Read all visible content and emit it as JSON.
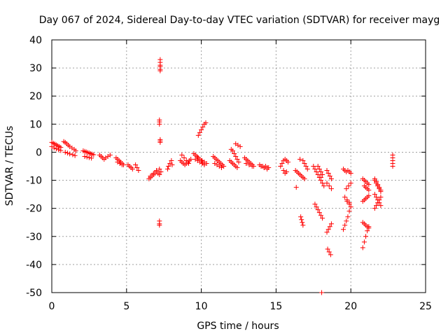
{
  "chart_data": {
    "type": "scatter",
    "title": "Day 067 of 2024, Sidereal Day-to-day VTEC variation (SDTVAR) for receiver mayg",
    "xlabel": "GPS time / hours",
    "ylabel": "SDTVAR / TECUs",
    "xlim": [
      0,
      25
    ],
    "ylim": [
      -50,
      40
    ],
    "xticks": [
      "0",
      "5",
      "10",
      "15",
      "20",
      "25"
    ],
    "yticks": [
      "40",
      "30",
      "20",
      "10",
      "0",
      "-10",
      "-20",
      "-30",
      "-40",
      "-50"
    ],
    "grid": true,
    "marker": "+",
    "color": "#ff0000",
    "series": [
      {
        "name": "SDTVAR",
        "x": [
          0.0,
          0.1,
          0.2,
          0.3,
          0.4,
          0.5,
          0.6,
          0.0,
          0.15,
          0.3,
          0.45,
          0.6,
          0.8,
          0.9,
          1.0,
          1.1,
          1.2,
          1.35,
          1.5,
          1.6,
          0.9,
          1.05,
          1.2,
          1.4,
          1.55,
          2.1,
          2.2,
          2.3,
          2.4,
          2.5,
          2.6,
          2.7,
          2.8,
          2.2,
          2.35,
          2.5,
          2.65,
          3.2,
          3.3,
          3.4,
          3.5,
          3.6,
          3.75,
          3.9,
          4.3,
          4.4,
          4.5,
          4.6,
          4.7,
          4.8,
          4.4,
          4.55,
          4.7,
          5.1,
          5.2,
          5.3,
          5.4,
          5.6,
          5.7,
          5.8,
          6.5,
          6.6,
          6.7,
          6.8,
          6.9,
          7.0,
          7.1,
          7.2,
          7.3,
          6.6,
          6.8,
          7.0,
          7.2,
          7.25,
          7.25,
          7.25,
          7.25,
          7.25,
          7.25,
          7.2,
          7.2,
          7.2,
          7.25,
          7.25,
          7.25,
          7.2,
          7.2,
          7.2,
          7.75,
          7.8,
          7.9,
          8.0,
          8.05,
          8.6,
          8.7,
          8.8,
          8.9,
          9.0,
          9.1,
          9.2,
          9.3,
          8.7,
          8.85,
          9.0,
          9.15,
          9.5,
          9.6,
          9.7,
          9.8,
          9.9,
          10.0,
          10.1,
          10.2,
          9.6,
          9.75,
          9.9,
          10.05,
          10.2,
          9.8,
          9.9,
          10.0,
          10.1,
          10.2,
          10.3,
          9.75,
          9.9,
          10.05,
          10.2,
          10.35,
          10.8,
          10.9,
          11.0,
          11.1,
          11.2,
          11.3,
          11.4,
          11.5,
          10.9,
          11.05,
          11.2,
          11.35,
          12.0,
          12.1,
          12.2,
          12.3,
          12.4,
          12.5,
          11.9,
          12.0,
          12.1,
          12.2,
          12.3,
          12.4,
          12.3,
          12.45,
          12.6,
          12.9,
          13.0,
          13.1,
          13.2,
          13.3,
          13.4,
          13.5,
          13.0,
          13.2,
          13.4,
          13.9,
          14.0,
          14.1,
          14.2,
          14.3,
          14.4,
          14.5,
          14.0,
          14.2,
          14.4,
          15.3,
          15.4,
          15.5,
          15.6,
          15.7,
          15.8,
          15.5,
          15.6,
          15.7,
          16.3,
          16.4,
          16.5,
          16.6,
          16.7,
          16.8,
          16.9,
          16.35,
          16.6,
          16.65,
          16.7,
          16.75,
          16.8,
          16.8,
          16.9,
          17.0,
          17.1,
          17.5,
          17.6,
          17.7,
          17.8,
          17.9,
          18.0,
          18.1,
          18.2,
          17.6,
          17.7,
          17.8,
          17.9,
          18.0,
          18.1,
          17.8,
          17.9,
          18.0,
          18.1,
          18.0,
          18.4,
          18.5,
          18.6,
          18.7,
          18.45,
          18.55,
          18.65,
          18.4,
          18.5,
          18.6,
          18.7,
          18.4,
          18.55,
          18.7,
          19.5,
          19.6,
          19.7,
          19.8,
          19.9,
          20.0,
          19.5,
          19.6,
          19.7,
          19.8,
          19.9,
          20.0,
          19.7,
          19.85,
          20.0,
          19.75,
          19.9,
          19.6,
          19.75,
          19.9,
          20.8,
          20.9,
          21.0,
          21.1,
          21.2,
          20.9,
          21.0,
          21.1,
          21.2,
          20.8,
          20.9,
          21.0,
          21.1,
          21.2,
          20.8,
          20.9,
          21.0,
          21.1,
          21.2,
          20.8,
          20.9,
          21.0,
          21.1,
          21.2,
          21.6,
          21.7,
          21.8,
          21.9,
          22.0,
          21.6,
          21.7,
          21.8,
          21.9,
          22.0,
          21.6,
          21.7,
          21.8,
          21.9,
          22.0,
          21.6,
          21.7,
          21.8,
          21.9,
          22.0,
          22.8,
          22.8,
          22.8,
          22.8,
          22.8,
          18.05
        ],
        "y": [
          3.5,
          3.2,
          2.9,
          2.6,
          2.3,
          2.0,
          1.7,
          2.0,
          1.5,
          1.2,
          0.9,
          0.6,
          3.8,
          3.5,
          3.0,
          2.5,
          2.0,
          1.5,
          1.0,
          0.5,
          0.0,
          -0.3,
          -0.6,
          -0.9,
          -1.2,
          0.5,
          0.3,
          0.1,
          -0.1,
          -0.3,
          -0.5,
          -0.7,
          -0.9,
          -1.5,
          -1.7,
          -1.9,
          -2.1,
          -1.0,
          -1.5,
          -2.0,
          -2.5,
          -2.0,
          -1.5,
          -1.0,
          -2.0,
          -2.5,
          -3.0,
          -3.5,
          -4.0,
          -4.5,
          -3.5,
          -4.0,
          -4.5,
          -4.5,
          -5.0,
          -5.5,
          -6.0,
          -4.5,
          -5.5,
          -6.5,
          -9.5,
          -9.0,
          -8.5,
          -8.0,
          -7.5,
          -7.0,
          -7.5,
          -8.0,
          -7.0,
          -8.5,
          -7.5,
          -6.5,
          -6.0,
          33.0,
          32.0,
          31.0,
          30.5,
          29.5,
          29.0,
          11.5,
          10.8,
          10.0,
          4.5,
          4.0,
          3.5,
          -24.5,
          -25.5,
          -26.0,
          -6.0,
          -5.0,
          -4.0,
          -3.0,
          -4.5,
          -3.0,
          -3.5,
          -4.0,
          -4.5,
          -4.0,
          -3.5,
          -3.0,
          -2.5,
          -1.0,
          -2.0,
          -3.0,
          -4.0,
          -0.5,
          -1.0,
          -1.5,
          -2.0,
          -2.5,
          -3.0,
          -3.5,
          -4.0,
          -2.5,
          -3.0,
          -3.5,
          -4.0,
          -4.5,
          6.0,
          7.0,
          8.0,
          9.0,
          10.0,
          10.5,
          -2.0,
          -2.5,
          -3.0,
          -3.5,
          -4.0,
          -1.5,
          -2.0,
          -2.5,
          -3.0,
          -3.5,
          -4.0,
          -4.5,
          -5.0,
          -4.0,
          -4.5,
          -5.0,
          -5.5,
          1.0,
          0.5,
          -0.5,
          -1.5,
          -2.5,
          -3.5,
          -3.0,
          -3.5,
          -4.0,
          -4.5,
          -5.0,
          -5.5,
          3.0,
          2.5,
          2.0,
          -2.0,
          -2.5,
          -3.0,
          -3.5,
          -4.0,
          -4.5,
          -5.0,
          -4.0,
          -4.5,
          -5.0,
          -4.5,
          -5.0,
          -5.0,
          -5.5,
          -5.0,
          -5.5,
          -5.5,
          -5.0,
          -5.5,
          -6.0,
          -5.0,
          -4.0,
          -3.0,
          -2.5,
          -3.0,
          -3.5,
          -6.5,
          -7.5,
          -7.0,
          -6.5,
          -7.0,
          -7.5,
          -8.0,
          -8.5,
          -9.0,
          -9.5,
          -12.5,
          -2.5,
          -23.0,
          -24.0,
          -25.0,
          -26.0,
          -3.0,
          -4.0,
          -5.0,
          -6.0,
          -5.0,
          -6.0,
          -7.0,
          -8.0,
          -9.0,
          -10.0,
          -11.0,
          -12.0,
          -18.5,
          -19.5,
          -20.5,
          -21.5,
          -22.5,
          -23.5,
          -5.0,
          -6.0,
          -7.0,
          -8.0,
          -9.0,
          -6.5,
          -7.5,
          -8.5,
          -9.5,
          -34.5,
          -35.5,
          -36.5,
          -28.5,
          -27.5,
          -26.5,
          -25.5,
          -11.0,
          -12.0,
          -13.0,
          -6.0,
          -6.5,
          -7.0,
          -6.5,
          -7.0,
          -7.5,
          -27.5,
          -26.0,
          -24.5,
          -23.0,
          -21.0,
          -19.5,
          -13.0,
          -12.0,
          -11.0,
          -17.5,
          -18.5,
          -16.0,
          -17.0,
          -18.0,
          -9.5,
          -10.0,
          -10.5,
          -11.0,
          -11.5,
          -12.0,
          -12.5,
          -13.0,
          -13.5,
          -17.5,
          -17.0,
          -16.5,
          -16.0,
          -15.5,
          -34.0,
          -32.0,
          -30.0,
          -28.0,
          -26.5,
          -25.0,
          -25.5,
          -26.0,
          -26.5,
          -27.0,
          -10.0,
          -11.0,
          -12.0,
          -13.0,
          -14.0,
          -15.0,
          -16.0,
          -17.0,
          -18.0,
          -19.0,
          -20.0,
          -19.0,
          -18.0,
          -17.0,
          -16.0,
          -9.5,
          -10.5,
          -11.5,
          -12.5,
          -13.5,
          -1.0,
          -2.0,
          -3.0,
          -4.0,
          -5.0,
          -50.0
        ]
      }
    ]
  }
}
